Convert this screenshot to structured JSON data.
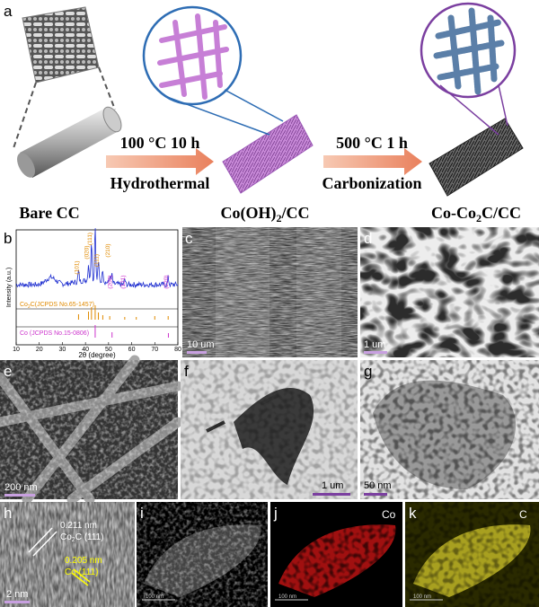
{
  "panel_a": {
    "label": "a",
    "bare": "Bare CC",
    "step1_top": "100 °C 10 h",
    "step1_bottom": "Hydrothermal",
    "mid": [
      "Co(OH)",
      "2",
      "/CC"
    ],
    "step2_top": "500 °C 1 h",
    "step2_bottom": "Carbonization",
    "final": [
      "Co-Co",
      "2",
      "C/CC"
    ]
  },
  "panel_b": {
    "label": "b",
    "ylabel": "Intensity (a.u.)",
    "xlabel": "2θ (degree)",
    "xlim": [
      10,
      80
    ],
    "xticks": [
      10,
      20,
      30,
      40,
      50,
      60,
      70,
      80
    ],
    "peaks": [
      {
        "label": "(101)",
        "x": 37,
        "color": "#e08a00"
      },
      {
        "label": "(111)",
        "x": 42.6,
        "color": "#e08a00"
      },
      {
        "label": "(020)",
        "x": 41.3,
        "color": "#e08a00"
      },
      {
        "label": "(111)",
        "x": 45.6,
        "color": "#e08a00"
      },
      {
        "label": "(210)",
        "x": 50.5,
        "color": "#e08a00"
      },
      {
        "label": "(200)",
        "x": 51.4,
        "color": "#cc33cc"
      },
      {
        "label": "(121)",
        "x": 57,
        "color": "#cc33cc"
      },
      {
        "label": "(220)",
        "x": 75.8,
        "color": "#cc33cc"
      }
    ],
    "ref1": [
      "Co",
      "2",
      "C(JCPDS No.65-1457)"
    ],
    "ref2": "Co (JCPDS No.15-0806)"
  },
  "panel_c": {
    "label": "c",
    "scale": "10 um"
  },
  "panel_d": {
    "label": "d",
    "scale": "1 um"
  },
  "panel_e": {
    "label": "e",
    "scale": "200 nm"
  },
  "panel_f": {
    "label": "f",
    "scale": "1 um"
  },
  "panel_g": {
    "label": "g",
    "scale": "50 nm"
  },
  "panel_h": {
    "label": "h",
    "scale": "2 nm",
    "d1": "0.211 nm",
    "phase1": [
      "Co",
      "2",
      "C (111)"
    ],
    "d2": "0.205 nm",
    "phase2": "Co (111)"
  },
  "panel_i": {
    "label": "i",
    "scale": "100 nm"
  },
  "panel_j": {
    "label": "j",
    "element": "Co",
    "scale": "100 nm"
  },
  "panel_k": {
    "label": "k",
    "element": "C",
    "scale": "100 nm"
  }
}
